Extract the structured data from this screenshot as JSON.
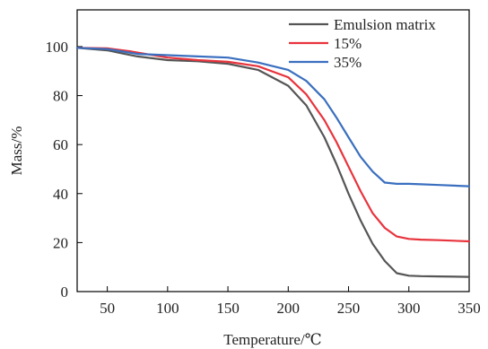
{
  "chart_data": {
    "type": "line",
    "xlabel": "Temperature/℃",
    "ylabel": "Mass/%",
    "xlim": [
      25,
      350
    ],
    "ylim": [
      0,
      115
    ],
    "xticks": [
      50,
      100,
      150,
      200,
      250,
      300,
      350
    ],
    "yticks": [
      0,
      20,
      40,
      60,
      80,
      100
    ],
    "grid": false,
    "legend_position": "top-right",
    "series": [
      {
        "name": "Emulsion matrix",
        "color": "#555555",
        "x": [
          25,
          50,
          75,
          100,
          125,
          150,
          175,
          200,
          215,
          230,
          240,
          250,
          260,
          270,
          280,
          290,
          300,
          310,
          325,
          350
        ],
        "y": [
          99.5,
          98.5,
          96,
          94.5,
          94,
          93,
          90.5,
          84,
          76,
          63,
          52,
          40,
          29,
          19.5,
          12.5,
          7.5,
          6.5,
          6.3,
          6.2,
          6.0
        ]
      },
      {
        "name": "15%",
        "color": "#e8333c",
        "x": [
          25,
          50,
          70,
          100,
          125,
          150,
          175,
          200,
          215,
          230,
          240,
          250,
          260,
          270,
          280,
          290,
          300,
          310,
          325,
          350
        ],
        "y": [
          99.5,
          99.3,
          98,
          95.5,
          94.5,
          93.8,
          92,
          87.5,
          80.5,
          70,
          61,
          51,
          41,
          32,
          26,
          22.5,
          21.5,
          21.2,
          21,
          20.5
        ]
      },
      {
        "name": "35%",
        "color": "#3a6fbf",
        "x": [
          25,
          50,
          75,
          100,
          125,
          150,
          175,
          200,
          215,
          230,
          240,
          250,
          260,
          270,
          280,
          290,
          300,
          310,
          325,
          350
        ],
        "y": [
          99.5,
          99,
          97,
          96.5,
          96,
          95.5,
          93.5,
          90.5,
          86,
          78.5,
          71,
          63,
          55,
          49,
          44.5,
          44,
          44,
          43.8,
          43.5,
          43
        ]
      }
    ]
  }
}
